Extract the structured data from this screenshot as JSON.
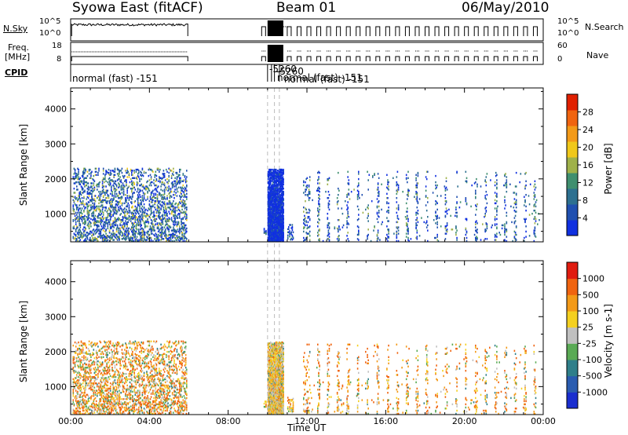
{
  "header": {
    "station": "Syowa East (fitACF)",
    "beam": "Beam 01",
    "date": "06/May/2010"
  },
  "sky_panel": {
    "left_label": "N.Sky",
    "right_label": "N.Search",
    "left_ticks": [
      "10^5",
      "10^0"
    ],
    "right_ticks": [
      "10^5",
      "10^0"
    ]
  },
  "freq_panel": {
    "left_label_line1": "Freq.",
    "left_label_line2": "[MHz]",
    "right_label": "Nave",
    "left_ticks": [
      "18",
      "8"
    ],
    "right_ticks": [
      "60",
      "0"
    ]
  },
  "cpid_panel": {
    "label": "CPID",
    "segments": [
      {
        "start_hour": 0.0,
        "text": "normal (fast) -151"
      },
      {
        "start_hour": 10.0,
        "text": "-5260"
      },
      {
        "start_hour": 10.2,
        "text": "-5260"
      },
      {
        "start_hour": 10.35,
        "text": "normal (fast) -151"
      },
      {
        "start_hour": 10.6,
        "text": "normal (fast) -151"
      }
    ]
  },
  "chart_data": [
    {
      "type": "heatmap",
      "name": "power",
      "ylabel": "Slant Range [km]",
      "ylim": [
        200,
        4600
      ],
      "yticks": [
        1000,
        2000,
        3000,
        4000
      ],
      "xlim": [
        0,
        24
      ],
      "colorbar": {
        "label": "Power [dB]",
        "range": [
          0,
          32
        ],
        "ticks": [
          4,
          8,
          12,
          16,
          20,
          24,
          28
        ],
        "colors": [
          "#1030e0",
          "#2050b0",
          "#2d7090",
          "#3f8f6f",
          "#9fb14a",
          "#f0c81a",
          "#f39a18",
          "#f06410",
          "#e02000"
        ]
      },
      "scatter_regions": [
        {
          "t0": 0.1,
          "t1": 5.9,
          "r0": 220,
          "r1": 2300,
          "density": 0.32,
          "mix": [
            0.25,
            0.25,
            0.2,
            0.15,
            0.1,
            0.05
          ]
        },
        {
          "t0": 10.0,
          "t1": 10.8,
          "r0": 220,
          "r1": 2280,
          "density": 0.85,
          "mix": [
            0.85,
            0.1,
            0.05,
            0.0,
            0.0,
            0.0
          ]
        },
        {
          "t0": 9.8,
          "t1": 9.9,
          "r0": 420,
          "r1": 620,
          "density": 0.5,
          "mix": [
            0.2,
            0.3,
            0.2,
            0.2,
            0.1,
            0.0
          ]
        },
        {
          "t0": 11.0,
          "t1": 11.3,
          "r0": 260,
          "r1": 700,
          "density": 0.4,
          "mix": [
            0.4,
            0.3,
            0.2,
            0.1,
            0.0,
            0.0
          ]
        },
        {
          "t0": 11.8,
          "t1": 23.8,
          "r0": 220,
          "r1": 2200,
          "density": 0.07,
          "mix": [
            0.3,
            0.3,
            0.15,
            0.15,
            0.1,
            0.0
          ]
        }
      ]
    },
    {
      "type": "heatmap",
      "name": "velocity",
      "ylabel": "Slant Range [km]",
      "ylim": [
        200,
        4600
      ],
      "yticks": [
        1000,
        2000,
        3000,
        4000
      ],
      "xlim": [
        0,
        24
      ],
      "xlabel": "Time UT",
      "xticks": [
        "00:00",
        "04:00",
        "08:00",
        "12:00",
        "16:00",
        "20:00",
        "00:00"
      ],
      "colorbar": {
        "label": "Velocity [m s-1]",
        "ticks": [
          "1000",
          "500",
          "100",
          "25",
          "-25",
          "-100",
          "-500",
          "-1000"
        ],
        "colors": [
          "#1a2ecf",
          "#2a5cb0",
          "#2f7f8a",
          "#5aaa55",
          "#c0c0c0",
          "#f4d020",
          "#f39a18",
          "#f06410",
          "#e01c10"
        ]
      },
      "scatter_regions": [
        {
          "t0": 0.1,
          "t1": 5.9,
          "r0": 220,
          "r1": 2300,
          "density": 0.32,
          "mix": [
            0.05,
            0.15,
            0.15,
            0.1,
            0.25,
            0.3
          ]
        },
        {
          "t0": 10.0,
          "t1": 10.8,
          "r0": 220,
          "r1": 2280,
          "density": 0.85,
          "mix": [
            0.05,
            0.05,
            0.3,
            0.3,
            0.25,
            0.05
          ]
        },
        {
          "t0": 9.8,
          "t1": 9.9,
          "r0": 420,
          "r1": 620,
          "density": 0.5,
          "mix": [
            0.0,
            0.1,
            0.2,
            0.3,
            0.2,
            0.2
          ]
        },
        {
          "t0": 11.0,
          "t1": 11.3,
          "r0": 260,
          "r1": 700,
          "density": 0.4,
          "mix": [
            0.0,
            0.1,
            0.2,
            0.3,
            0.2,
            0.2
          ]
        },
        {
          "t0": 11.8,
          "t1": 23.8,
          "r0": 220,
          "r1": 2200,
          "density": 0.07,
          "mix": [
            0.05,
            0.1,
            0.15,
            0.1,
            0.3,
            0.3
          ]
        }
      ]
    }
  ]
}
